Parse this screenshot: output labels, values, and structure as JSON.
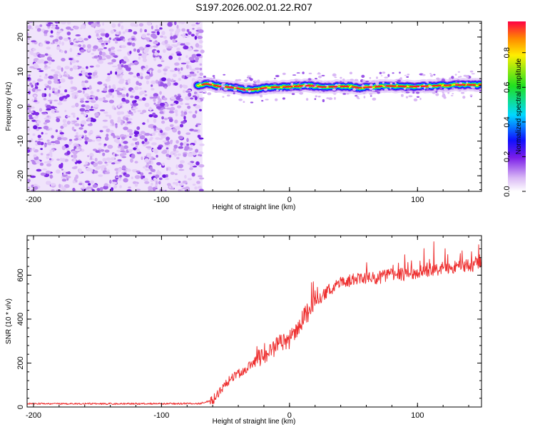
{
  "figure": {
    "title": "S197.2026.002.01.22.R07"
  },
  "chart_data": [
    {
      "type": "heatmap",
      "title": "S197.2026.002.01.22.R07",
      "xlabel": "Height of straight line (km)",
      "ylabel": "Frequency (Hz)",
      "xlim": [
        -205,
        150
      ],
      "ylim": [
        -24.5,
        24.5
      ],
      "x_ticks": [
        -200,
        -100,
        0,
        100
      ],
      "y_ticks": [
        -20,
        -10,
        0,
        10,
        20
      ],
      "noise_region_x": [
        -205,
        -68
      ],
      "signal_onset_x": -72,
      "ridge": {
        "x": [
          -72,
          -65,
          -55,
          -45,
          -35,
          -25,
          -15,
          -5,
          5,
          15,
          25,
          35,
          45,
          55,
          65,
          75,
          85,
          95,
          105,
          115,
          125,
          135,
          150
        ],
        "frequency": [
          6.0,
          6.5,
          5.8,
          5.5,
          4.8,
          5.0,
          5.5,
          5.6,
          5.8,
          6.0,
          5.6,
          5.7,
          5.8,
          5.4,
          5.6,
          5.9,
          5.8,
          5.7,
          5.8,
          6.0,
          6.1,
          6.2,
          6.2
        ]
      },
      "colorbar": {
        "label": "Normalized spectral amplitude",
        "range": [
          0,
          0.98
        ],
        "ticks": [
          0.0,
          0.2,
          0.4,
          0.6,
          0.8
        ],
        "tick_labels": [
          "0.0",
          "0.2",
          "0.4",
          "0.6",
          "0.8"
        ]
      }
    },
    {
      "type": "line",
      "xlabel": "Height of straight line (km)",
      "ylabel": "SNR (10 * v/v)",
      "xlim": [
        -205,
        150
      ],
      "ylim": [
        0,
        780
      ],
      "x_ticks": [
        -200,
        -100,
        0,
        100
      ],
      "y_ticks": [
        0,
        200,
        400,
        600
      ],
      "color": "#ee3030",
      "series": [
        {
          "name": "SNR",
          "x": [
            -205,
            -150,
            -100,
            -70,
            -60,
            -50,
            -40,
            -30,
            -20,
            -10,
            0,
            10,
            20,
            30,
            40,
            50,
            60,
            70,
            80,
            90,
            100,
            110,
            120,
            130,
            140,
            150
          ],
          "y": [
            15,
            15,
            15,
            16,
            30,
            110,
            150,
            190,
            240,
            280,
            310,
            400,
            470,
            530,
            565,
            580,
            585,
            590,
            600,
            605,
            610,
            625,
            630,
            640,
            645,
            650
          ]
        }
      ]
    }
  ]
}
